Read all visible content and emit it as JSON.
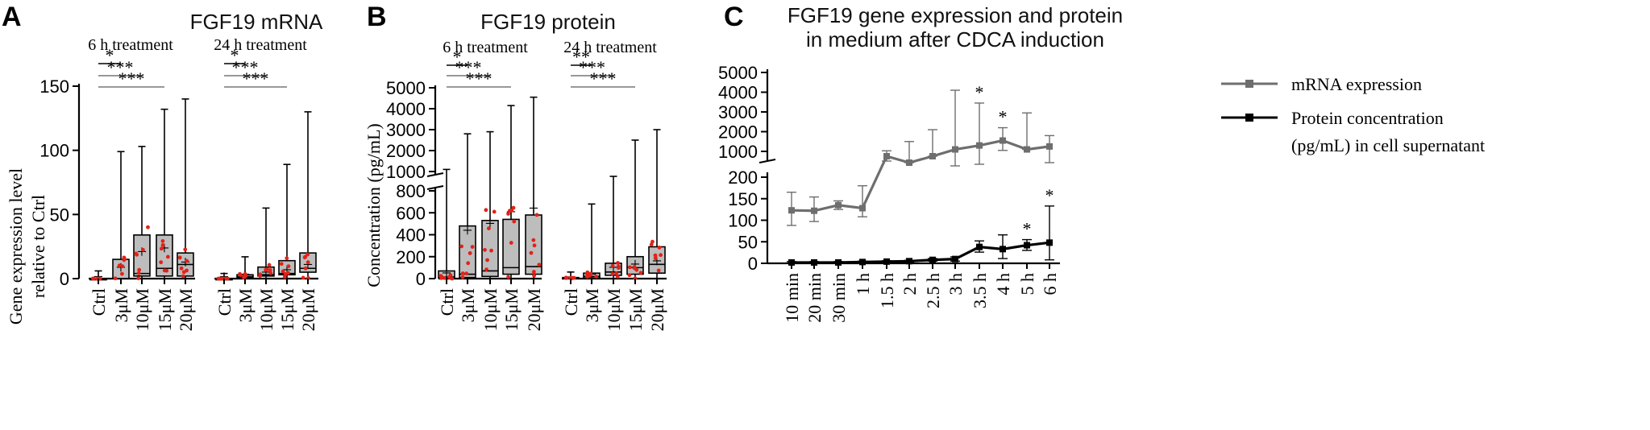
{
  "chart_data": [
    {
      "panel": "A",
      "type": "box",
      "title": "FGF19 mRNA",
      "ylabel": "Gene expression level relative to Ctrl",
      "ylim": [
        0,
        150
      ],
      "yticks": [
        "0",
        "50",
        "100",
        "150"
      ],
      "groups": [
        {
          "label": "6 h treatment",
          "categories": [
            "Ctrl",
            "3μM",
            "10μM",
            "15μM",
            "20μM"
          ],
          "boxes": [
            {
              "min": 0,
              "q1": 0,
              "median": 0,
              "q3": 0,
              "max": 6,
              "mean": 0.5
            },
            {
              "min": 0,
              "q1": 0,
              "median": 0,
              "q3": 15,
              "max": 99,
              "mean": 8
            },
            {
              "min": 0,
              "q1": 2,
              "median": 4,
              "q3": 34,
              "max": 103,
              "mean": 20
            },
            {
              "min": 0,
              "q1": 2,
              "median": 8,
              "q3": 34,
              "max": 132,
              "mean": 23
            },
            {
              "min": 0,
              "q1": 2,
              "median": 11,
              "q3": 20,
              "max": 140,
              "mean": 12
            }
          ],
          "significance": [
            "*",
            "***",
            "***"
          ]
        },
        {
          "label": "24 h treatment",
          "categories": [
            "Ctrl",
            "3μM",
            "10μM",
            "15μM",
            "20μM"
          ],
          "boxes": [
            {
              "min": 0,
              "q1": 0,
              "median": 0,
              "q3": 0,
              "max": 4,
              "mean": 0.5
            },
            {
              "min": 0,
              "q1": 1,
              "median": 1.5,
              "q3": 3,
              "max": 17,
              "mean": 2.5
            },
            {
              "min": 0,
              "q1": 2,
              "median": 3,
              "q3": 9,
              "max": 55,
              "mean": 4
            },
            {
              "min": 0,
              "q1": 3,
              "median": 4,
              "q3": 14,
              "max": 89,
              "mean": 6
            },
            {
              "min": 0,
              "q1": 5,
              "median": 8,
              "q3": 20,
              "max": 130,
              "mean": 10
            }
          ],
          "significance": [
            "*",
            "***",
            "***"
          ]
        }
      ]
    },
    {
      "panel": "B",
      "type": "box",
      "title": "FGF19 protein",
      "ylabel": "Concentration (pg/mL)",
      "y_axis_break": {
        "lower": [
          0,
          800
        ],
        "upper": [
          1000,
          5000
        ]
      },
      "yticks_lower": [
        "0",
        "200",
        "400",
        "600",
        "800"
      ],
      "yticks_upper": [
        "1000",
        "2000",
        "3000",
        "4000",
        "5000"
      ],
      "groups": [
        {
          "label": "6 h treatment",
          "categories": [
            "Ctrl",
            "3μM",
            "10μM",
            "15μM",
            "20μM"
          ],
          "boxes": [
            {
              "min": 0,
              "q1": 5,
              "median": 15,
              "q3": 70,
              "max": 1100,
              "mean": 40
            },
            {
              "min": 0,
              "q1": 10,
              "median": 40,
              "q3": 480,
              "max": 2800,
              "mean": 430
            },
            {
              "min": 0,
              "q1": 20,
              "median": 70,
              "q3": 530,
              "max": 2900,
              "mean": 490
            },
            {
              "min": 0,
              "q1": 40,
              "median": 100,
              "q3": 540,
              "max": 4150,
              "mean": 600
            },
            {
              "min": 0,
              "q1": 40,
              "median": 110,
              "q3": 580,
              "max": 4550,
              "mean": 630
            }
          ],
          "significance": [
            "*",
            "***",
            "***"
          ]
        },
        {
          "label": "24 h treatment",
          "categories": [
            "Ctrl",
            "3μM",
            "10μM",
            "15μM",
            "20μM"
          ],
          "boxes": [
            {
              "min": 0,
              "q1": 0,
              "median": 5,
              "q3": 10,
              "max": 60,
              "mean": 5
            },
            {
              "min": 0,
              "q1": 5,
              "median": 20,
              "q3": 50,
              "max": 680,
              "mean": 30
            },
            {
              "min": 0,
              "q1": 30,
              "median": 60,
              "q3": 140,
              "max": 950,
              "mean": 90
            },
            {
              "min": 0,
              "q1": 40,
              "median": 100,
              "q3": 200,
              "max": 2500,
              "mean": 120
            },
            {
              "min": 0,
              "q1": 50,
              "median": 130,
              "q3": 290,
              "max": 3000,
              "mean": 150
            }
          ],
          "significance": [
            "**",
            "***",
            "***"
          ]
        }
      ]
    },
    {
      "panel": "C",
      "type": "line",
      "title": "FGF19 gene expression and protein in medium after CDCA induction",
      "x": [
        "10 min",
        "20 min",
        "30 min",
        "1 h",
        "1.5 h",
        "2 h",
        "2.5 h",
        "3 h",
        "3.5 h",
        "4 h",
        "5 h",
        "6 h"
      ],
      "y_axis_break": {
        "lower": [
          0,
          200
        ],
        "upper": [
          1000,
          5000
        ]
      },
      "yticks_lower": [
        "0",
        "50",
        "100",
        "150",
        "200"
      ],
      "yticks_upper": [
        "1000",
        "2000",
        "3000",
        "4000",
        "5000"
      ],
      "series": [
        {
          "name": "mRNA expression",
          "color": "#6e6e6e",
          "values": [
            123,
            122,
            135,
            128,
            850,
            650,
            850,
            1100,
            1300,
            1550,
            1100,
            1250
          ],
          "error_up": [
            42,
            32,
            10,
            52,
            180,
            850,
            1250,
            3000,
            2150,
            650,
            1850,
            550
          ],
          "error_down": [
            35,
            25,
            10,
            20,
            150,
            0,
            0,
            550,
            700,
            500,
            0,
            600
          ]
        },
        {
          "name": "Protein concentration (pg/mL) in cell supernatant",
          "color": "#000000",
          "values": [
            2,
            2,
            2,
            3,
            4,
            5,
            8,
            10,
            38,
            33,
            42,
            48
          ],
          "error_up": [
            2,
            2,
            2,
            2,
            2,
            2,
            3,
            5,
            14,
            33,
            13,
            85
          ],
          "error_down": [
            2,
            2,
            2,
            2,
            2,
            2,
            3,
            5,
            12,
            22,
            12,
            40
          ]
        }
      ],
      "annotations": [
        {
          "x": "3.5 h",
          "series": "mRNA expression",
          "text": "*"
        },
        {
          "x": "4 h",
          "series": "mRNA expression",
          "text": "*"
        },
        {
          "x": "5 h",
          "series": "Protein concentration (pg/mL) in cell supernatant",
          "text": "*"
        },
        {
          "x": "6 h",
          "series": "Protein concentration (pg/mL) in cell supernatant",
          "text": "*"
        }
      ]
    }
  ],
  "panels": {
    "a": {
      "letter": "A",
      "ylabel_line1": "Gene expression level",
      "ylabel_line2": "relative to Ctrl"
    },
    "b": {
      "letter": "B"
    },
    "c": {
      "letter": "C",
      "title_line1": "FGF19 gene expression and protein",
      "title_line2": "in medium after CDCA induction"
    }
  },
  "colors": {
    "box_fill": "#bdbdbd",
    "dot": "#e32219",
    "mrna_line": "#6e6e6e",
    "protein_line": "#000000"
  }
}
